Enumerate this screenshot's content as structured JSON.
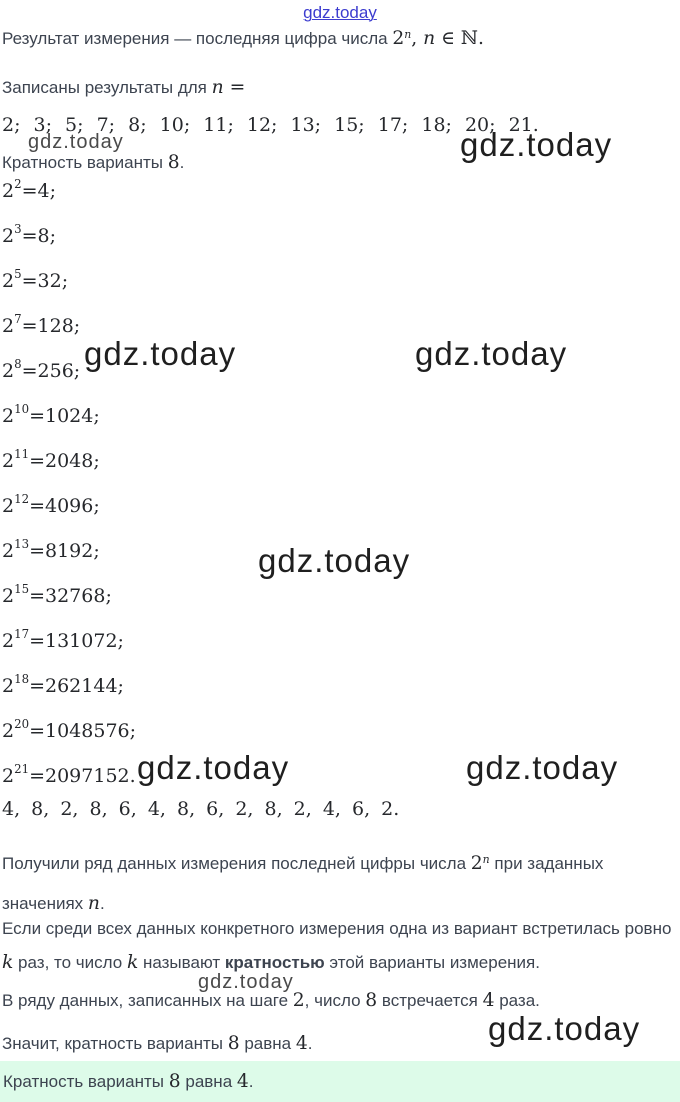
{
  "site": {
    "link_label": "gdz.today",
    "link_color": "#3c3ccf"
  },
  "watermark": {
    "text": "gdz.today"
  },
  "colors": {
    "answer_bg": "#ddfbe9",
    "body_text": "#3d4450",
    "math_text": "#26282c"
  },
  "paragraphs": {
    "intro": [
      {
        "t": "Результат измерения — последняя цифра числа "
      },
      {
        "t": "2",
        "c": "m"
      },
      {
        "t": "n",
        "c": "mi sup"
      },
      {
        "t": ", ",
        "c": "m"
      },
      {
        "t": "n",
        "c": "mi"
      },
      {
        "t": " ∈ ",
        "c": "m"
      },
      {
        "t": "ℕ",
        "c": "m"
      },
      {
        "t": ".",
        "c": "m"
      }
    ],
    "given": [
      {
        "t": "Записаны результаты для "
      },
      {
        "t": "n",
        "c": "mi"
      },
      {
        "t": " =",
        "c": "m"
      }
    ],
    "n_values": [
      {
        "t": "2; 3; 5; 7; 8; 10; 11; 12; 13; 15; 17; 18; 20; 21."
      }
    ],
    "step_header": [
      {
        "t": "Кратность варианты "
      },
      {
        "t": "8",
        "c": "m"
      },
      {
        "t": "."
      }
    ],
    "digits_row": [
      {
        "t": "4, 8, 2, 8, 6, 4, 8, 6, 2, 8, 2, 4, 6, 2."
      }
    ],
    "result_series": [
      {
        "t": "Получили ряд данных измерения последней цифры числа "
      },
      {
        "t": "2",
        "c": "m"
      },
      {
        "t": "n",
        "c": "mi sup"
      },
      {
        "t": " при заданных значениях "
      },
      {
        "t": "n",
        "c": "mi"
      },
      {
        "t": "."
      }
    ],
    "definition": [
      {
        "t": "Если среди всех данных конкретного измерения одна из вариант встретилась ровно "
      },
      {
        "t": "k",
        "c": "mi"
      },
      {
        "t": " раз, то число "
      },
      {
        "t": "k",
        "c": "mi"
      },
      {
        "t": " называют "
      },
      {
        "t": "кратностью",
        "c": "b"
      },
      {
        "t": " этой варианты измерения."
      }
    ],
    "observation": [
      {
        "t": "В ряду данных, записанных на шаге "
      },
      {
        "t": "2",
        "c": "m"
      },
      {
        "t": ", число "
      },
      {
        "t": "8",
        "c": "m"
      },
      {
        "t": " встречается "
      },
      {
        "t": "4",
        "c": "m"
      },
      {
        "t": " раза."
      }
    ],
    "conclusion": [
      {
        "t": "Значит, кратность варианты "
      },
      {
        "t": "8",
        "c": "m"
      },
      {
        "t": " равна "
      },
      {
        "t": "4",
        "c": "m"
      },
      {
        "t": "."
      }
    ],
    "answer": [
      {
        "t": "Кратность варианты "
      },
      {
        "t": "8",
        "c": "m"
      },
      {
        "t": " равна "
      },
      {
        "t": "4",
        "c": "m"
      },
      {
        "t": "."
      }
    ]
  },
  "powers": {
    "base": "2",
    "equals": " = ",
    "rows": [
      {
        "exp": "2",
        "value": "4",
        "sep": ";"
      },
      {
        "exp": "3",
        "value": "8",
        "sep": ";"
      },
      {
        "exp": "5",
        "value": "32",
        "sep": ";"
      },
      {
        "exp": "7",
        "value": "128",
        "sep": ";"
      },
      {
        "exp": "8",
        "value": "256",
        "sep": ";"
      },
      {
        "exp": "10",
        "value": "1024",
        "sep": ";"
      },
      {
        "exp": "11",
        "value": "2048",
        "sep": ";"
      },
      {
        "exp": "12",
        "value": "4096",
        "sep": ";"
      },
      {
        "exp": "13",
        "value": "8192",
        "sep": ";"
      },
      {
        "exp": "15",
        "value": "32768",
        "sep": ";"
      },
      {
        "exp": "17",
        "value": "131072",
        "sep": ";"
      },
      {
        "exp": "18",
        "value": "262144",
        "sep": ";"
      },
      {
        "exp": "20",
        "value": "1048576",
        "sep": ";"
      },
      {
        "exp": "21",
        "value": "2097152",
        "sep": "."
      }
    ]
  }
}
